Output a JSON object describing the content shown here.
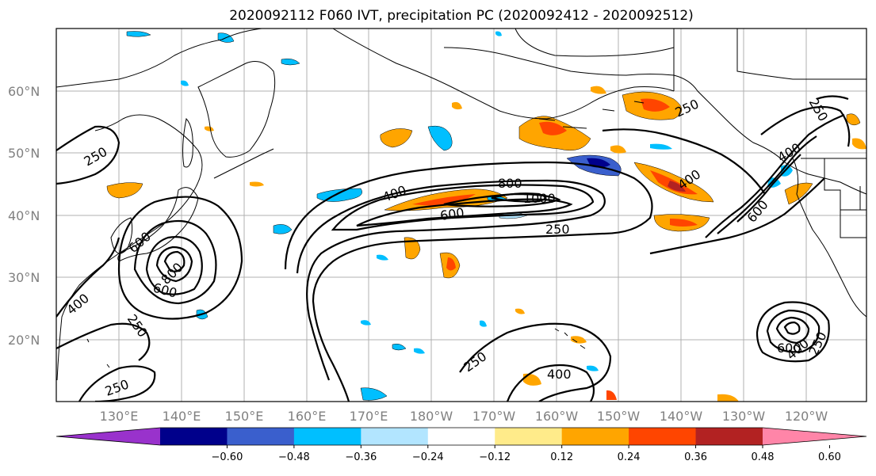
{
  "title": "2020092112 F060 IVT, precipitation PC (2020092412 - 2020092512)",
  "lat_labels": [
    "60°N",
    "50°N",
    "40°N",
    "30°N",
    "20°N"
  ],
  "lon_labels": [
    "130°E",
    "140°E",
    "150°E",
    "160°E",
    "170°E",
    "180°W",
    "170°W",
    "160°W",
    "150°W",
    "140°W",
    "130°W",
    "120°W"
  ],
  "colorbar": {
    "colors": [
      "#9932cc",
      "#00008b",
      "#3a5fcd",
      "#00bfff",
      "#b2e5ff",
      "#ffffff",
      "#ffeb8a",
      "#ffa500",
      "#ff4500",
      "#b22222",
      "#ff85a8"
    ],
    "tick_labels": [
      "−0.60",
      "−0.48",
      "−0.36",
      "−0.24",
      "−0.12",
      "0.12",
      "0.24",
      "0.36",
      "0.48",
      "0.60"
    ]
  },
  "contour_labels": [
    "250",
    "400",
    "600",
    "800",
    "1000",
    "250",
    "600",
    "800",
    "600",
    "400",
    "250",
    "250",
    "250",
    "400",
    "250",
    "400",
    "400",
    "600",
    "250",
    "400",
    "600",
    "250"
  ]
}
